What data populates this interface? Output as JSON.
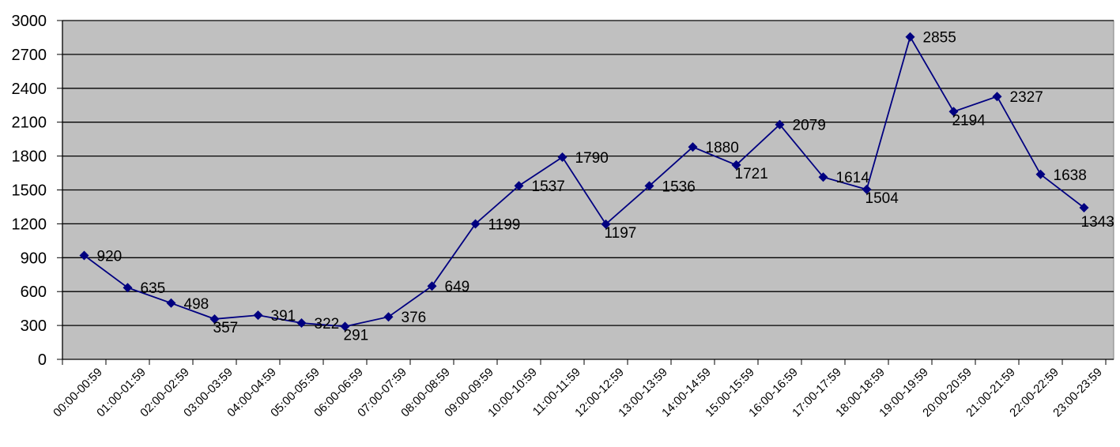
{
  "chart_data": {
    "type": "line",
    "title": "",
    "xlabel": "",
    "ylabel": "",
    "categories": [
      "00:00-00:59",
      "01:00-01:59",
      "02:00-02:59",
      "03:00-03:59",
      "04:00-04:59",
      "05:00-05:59",
      "06:00-06:59",
      "07:00-07:59",
      "08:00-08:59",
      "09:00-09:59",
      "10:00-10:59",
      "11:00-11:59",
      "12:00-12:59",
      "13:00-13:59",
      "14:00-14:59",
      "15:00-15:59",
      "16:00-16:59",
      "17:00-17:59",
      "18:00-18:59",
      "19:00-19:59",
      "20:00-20:59",
      "21:00-21:59",
      "22:00-22:59",
      "23:00-23:59"
    ],
    "categories_display": [
      "00:00-00:59",
      "01:00-01:59",
      "02:00-02:59",
      "03:00-03:59",
      "04:00-04:59",
      "05:00-05:59",
      "06:00-06:59",
      "07:00-07:59",
      "08:00-08:59",
      "09:00-09:59",
      "10:00-10:59",
      "11:00-11:59",
      "12:00-12:59",
      "13:00-13:59",
      "14:00-14:59",
      "15:00-15:59",
      "16:00-16:59",
      "17:00-17:59",
      "18:00-18:59",
      "19:00-19:59",
      "20:00-20:59",
      "21:00-21:59",
      "22:00-22:59",
      "23:00-23:59"
    ],
    "series": [
      {
        "values": [
          920,
          635,
          498,
          357,
          391,
          322,
          291,
          376,
          649,
          1199,
          1537,
          1790,
          1197,
          1536,
          1880,
          1721,
          2079,
          1614,
          1504,
          2855,
          2194,
          2327,
          1638,
          1343
        ]
      }
    ],
    "ylim": [
      0,
      3000
    ],
    "yticks": [
      "0",
      "300",
      "600",
      "900",
      "1200",
      "1500",
      "1800",
      "2100",
      "2400",
      "2700",
      "3000"
    ],
    "grid": true,
    "legend": "none",
    "colors": {
      "line": "#000080",
      "marker": "#000080",
      "plot_bg": "#c0c0c0",
      "grid": "#000000"
    }
  }
}
